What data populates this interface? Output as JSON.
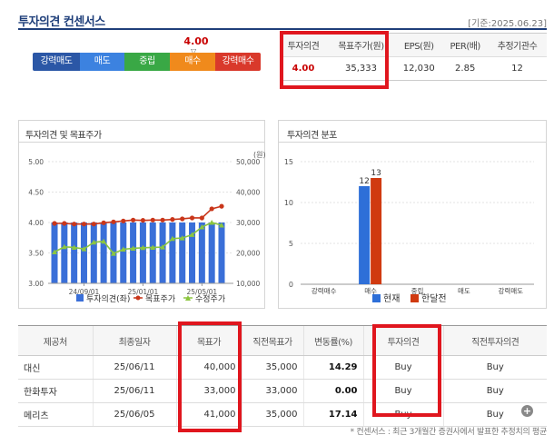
{
  "header": {
    "title": "투자의견 컨센서스",
    "date": "[기준:2025.06.23]"
  },
  "rating_bar": {
    "score": "4.00",
    "marker": "▽",
    "labels": [
      "강력매도",
      "매도",
      "중립",
      "매수",
      "강력매수"
    ],
    "colors": [
      "#2b57a6",
      "#3c82e0",
      "#39a845",
      "#f08a1c",
      "#d9392b"
    ]
  },
  "summary": {
    "headers": [
      "투자의견",
      "목표주가(원)",
      "EPS(원)",
      "PER(배)",
      "추정기관수"
    ],
    "values": [
      "4.00",
      "35,333",
      "12,030",
      "2.85",
      "12"
    ]
  },
  "panel1": {
    "title": "투자의견 및 목표주가",
    "unit": "(원)",
    "legend": [
      "투자의견(좌)",
      "목표주가",
      "수정주가"
    ]
  },
  "panel2": {
    "title": "투자의견 분포",
    "legend": [
      "현재",
      "한달전"
    ]
  },
  "chart_data": [
    {
      "type": "bar+line",
      "title": "투자의견 및 목표주가",
      "x_tick_labels": [
        "24/09/01",
        "25/01/01",
        "25/05/01"
      ],
      "left_axis": {
        "ticks": [
          "3.00",
          "3.50",
          "4.00",
          "4.50",
          "5.00"
        ],
        "ylim": [
          3.0,
          5.0
        ]
      },
      "right_axis": {
        "label": "(원)",
        "ticks": [
          "10,000",
          "20,000",
          "30,000",
          "40,000",
          "50,000"
        ],
        "ylim": [
          10000,
          50000
        ]
      },
      "series": [
        {
          "name": "투자의견(좌)",
          "kind": "bar",
          "axis": "left",
          "color": "#3a6fd8",
          "values": [
            4.0,
            4.0,
            4.0,
            4.0,
            4.0,
            4.0,
            4.0,
            4.0,
            4.0,
            4.0,
            4.0,
            4.0,
            4.0,
            4.0,
            4.0,
            4.0,
            4.0,
            4.0
          ]
        },
        {
          "name": "목표주가",
          "kind": "line",
          "axis": "right",
          "color": "#c9361a",
          "values": [
            29700,
            29700,
            29500,
            29500,
            29500,
            29900,
            30200,
            30500,
            30800,
            30700,
            30800,
            30800,
            31000,
            31200,
            31500,
            31500,
            34500,
            35333
          ]
        },
        {
          "name": "수정주가",
          "kind": "line",
          "axis": "right",
          "color": "#8cc63f",
          "values": [
            20300,
            22000,
            21800,
            21300,
            23500,
            23800,
            19800,
            21200,
            21500,
            21700,
            21800,
            21900,
            24700,
            24900,
            26000,
            28500,
            30000,
            29100
          ]
        }
      ]
    },
    {
      "type": "bar",
      "title": "투자의견 분포",
      "categories": [
        "강력매수",
        "매수",
        "중립",
        "매도",
        "강력매도"
      ],
      "ylim": [
        0,
        15
      ],
      "y_ticks": [
        "0",
        "5",
        "10",
        "15"
      ],
      "series": [
        {
          "name": "현재",
          "color": "#2e6fd8",
          "values": [
            0,
            12,
            0,
            0,
            0
          ],
          "data_labels": [
            "",
            "12",
            "",
            "",
            ""
          ]
        },
        {
          "name": "한달전",
          "color": "#d03a10",
          "values": [
            0,
            13,
            0,
            0,
            0
          ],
          "data_labels": [
            "",
            "13",
            "",
            "",
            ""
          ]
        }
      ]
    }
  ],
  "table": {
    "headers": [
      "제공처",
      "최종일자",
      "목표가",
      "직전목표가",
      "변동률(%)",
      "투자의견",
      "직전투자의견"
    ],
    "rows": [
      [
        "대신",
        "25/06/11",
        "40,000",
        "35,000",
        "14.29",
        "Buy",
        "Buy"
      ],
      [
        "한화투자",
        "25/06/11",
        "33,000",
        "33,000",
        "0.00",
        "Buy",
        "Buy"
      ],
      [
        "메리츠",
        "25/06/05",
        "41,000",
        "35,000",
        "17.14",
        "Buy",
        "Buy"
      ]
    ]
  },
  "footnote": "* 컨센서스 : 최근 3개월간 증권사에서 발표한 추정치의 평균",
  "plus_label": "+",
  "highlight_color": "#e0161e"
}
